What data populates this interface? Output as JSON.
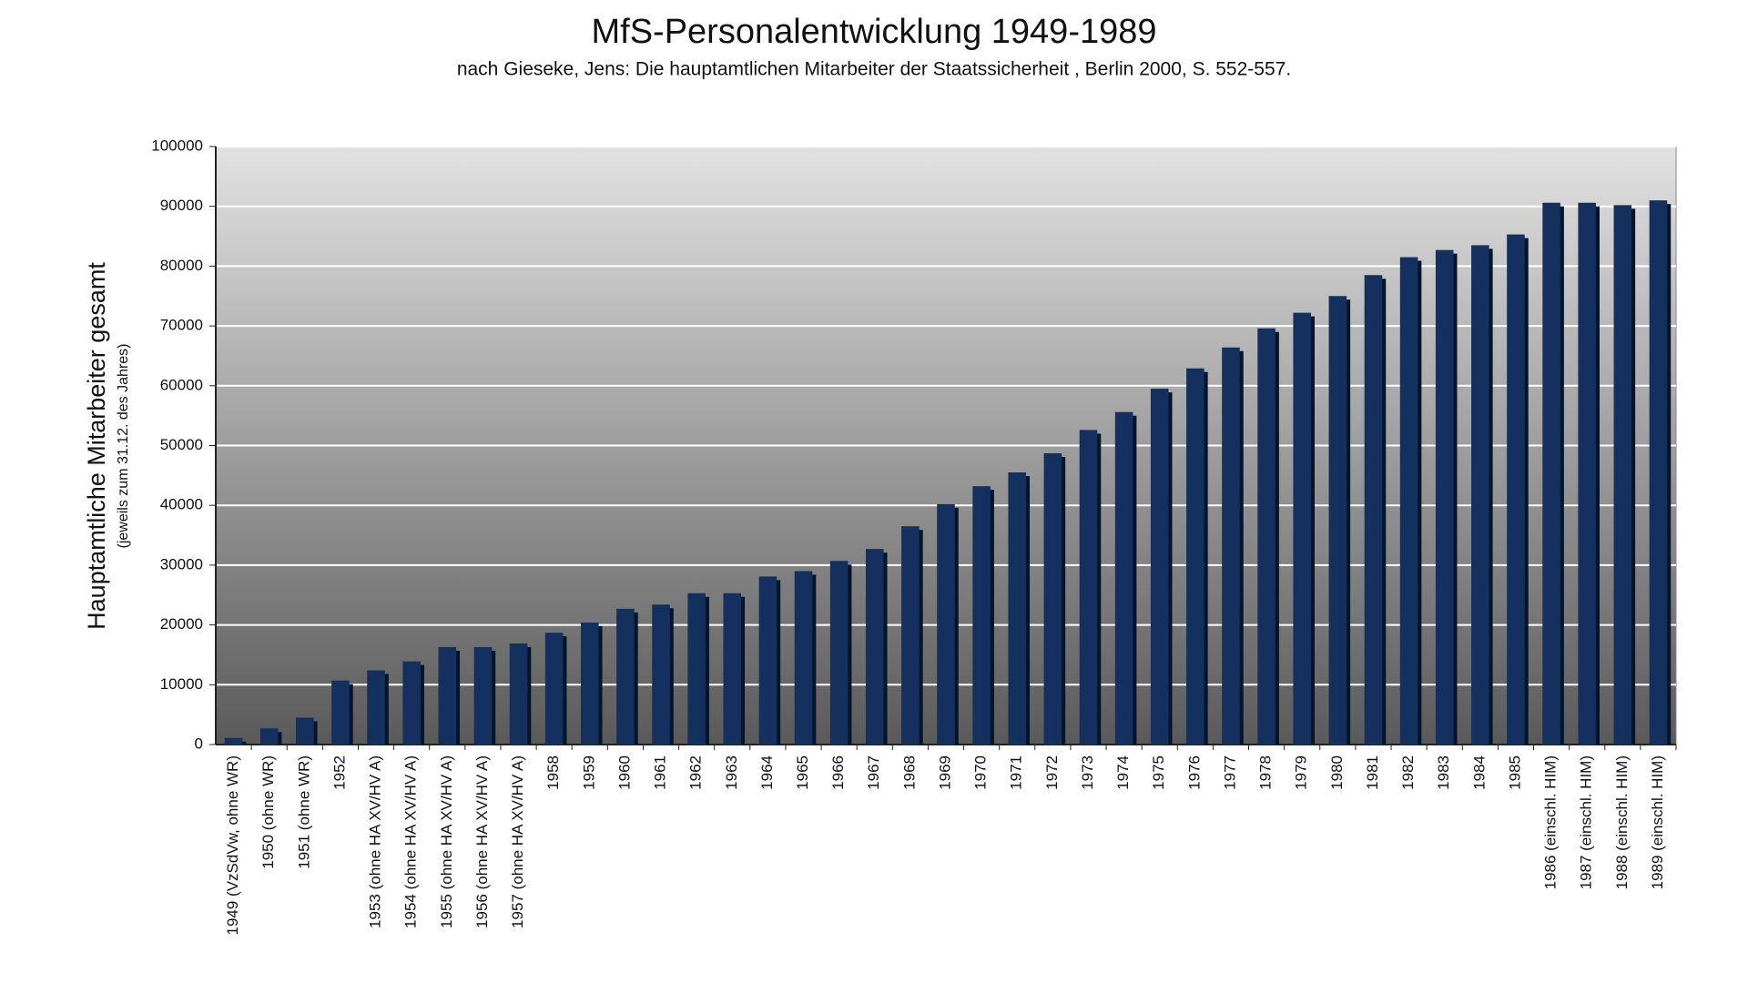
{
  "chart_data": {
    "type": "bar",
    "title": "MfS-Personalentwicklung 1949-1989",
    "subtitle": "nach Gieseke, Jens: Die hauptamtlichen Mitarbeiter der Staatssicherheit , Berlin 2000, S. 552-557.",
    "y_label": "Hauptamtliche Mitarbeiter gesamt",
    "y_sublabel": "(jeweils zum 31.12. des Jahres)",
    "categories": [
      "1949 (VzSdVw, ohne WR)",
      "1950 (ohne WR)",
      "1951 (ohne WR)",
      "1952",
      "1953 (ohne HA XV/HV A)",
      "1954 (ohne HA XV/HV A)",
      "1955 (ohne HA XV/HV A)",
      "1956 (ohne HA XV/HV A)",
      "1957 (ohne HA XV/HV A)",
      "1958",
      "1959",
      "1960",
      "1961",
      "1962",
      "1963",
      "1964",
      "1965",
      "1966",
      "1967",
      "1968",
      "1969",
      "1970",
      "1971",
      "1972",
      "1973",
      "1974",
      "1975",
      "1976",
      "1977",
      "1978",
      "1979",
      "1980",
      "1981",
      "1982",
      "1983",
      "1984",
      "1985",
      "1986 (einschl. HIM)",
      "1987 (einschl. HIM)",
      "1988 (einschl. HIM)",
      "1989 (einschl. HIM)"
    ],
    "values": [
      1100,
      2700,
      4500,
      10700,
      12400,
      13900,
      16300,
      16300,
      16900,
      18700,
      20400,
      22700,
      23400,
      25300,
      25300,
      28100,
      29000,
      30700,
      32700,
      36500,
      40200,
      43200,
      45500,
      48700,
      52600,
      55600,
      59500,
      62900,
      66400,
      69600,
      72200,
      75000,
      78500,
      81500,
      82700,
      83500,
      85300,
      90600,
      90600,
      90200,
      91000
    ],
    "color": "#13305e",
    "ylim": [
      0,
      100000
    ],
    "yticks": [
      0,
      10000,
      20000,
      30000,
      40000,
      50000,
      60000,
      70000,
      80000,
      90000,
      100000
    ],
    "grid": true
  }
}
